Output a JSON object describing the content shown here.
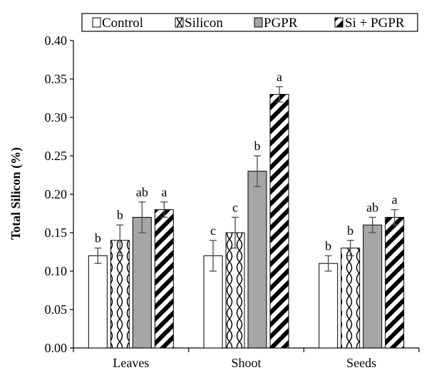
{
  "chart_data": {
    "type": "bar",
    "title": "",
    "xlabel": "",
    "ylabel": "Total Silicon (%)",
    "ylim": [
      0,
      0.4
    ],
    "yticks": [
      "0.00",
      "0.05",
      "0.10",
      "0.15",
      "0.20",
      "0.25",
      "0.30",
      "0.35",
      "0.40"
    ],
    "categories": [
      "Leaves",
      "Shoot",
      "Seeds"
    ],
    "legend_position": "top",
    "grid": false,
    "series": [
      {
        "name": "Control",
        "pattern": "white",
        "values": [
          0.12,
          0.12,
          0.11
        ],
        "errors": [
          0.01,
          0.02,
          0.01
        ],
        "labels": [
          "b",
          "c",
          "b"
        ]
      },
      {
        "name": "Silicon",
        "pattern": "wave",
        "values": [
          0.14,
          0.15,
          0.13
        ],
        "errors": [
          0.02,
          0.02,
          0.01
        ],
        "labels": [
          "b",
          "c",
          "b"
        ]
      },
      {
        "name": "PGPR",
        "pattern": "gray",
        "values": [
          0.17,
          0.23,
          0.16
        ],
        "errors": [
          0.02,
          0.02,
          0.01
        ],
        "labels": [
          "ab",
          "b",
          "ab"
        ]
      },
      {
        "name": "Si + PGPR",
        "pattern": "diagonal",
        "values": [
          0.18,
          0.33,
          0.17
        ],
        "errors": [
          0.01,
          0.01,
          0.01
        ],
        "labels": [
          "a",
          "a",
          "a"
        ]
      }
    ],
    "colors": {
      "gray_fill": "#a6a6a6",
      "stroke": "#000000",
      "error_bar": "#555555"
    }
  }
}
